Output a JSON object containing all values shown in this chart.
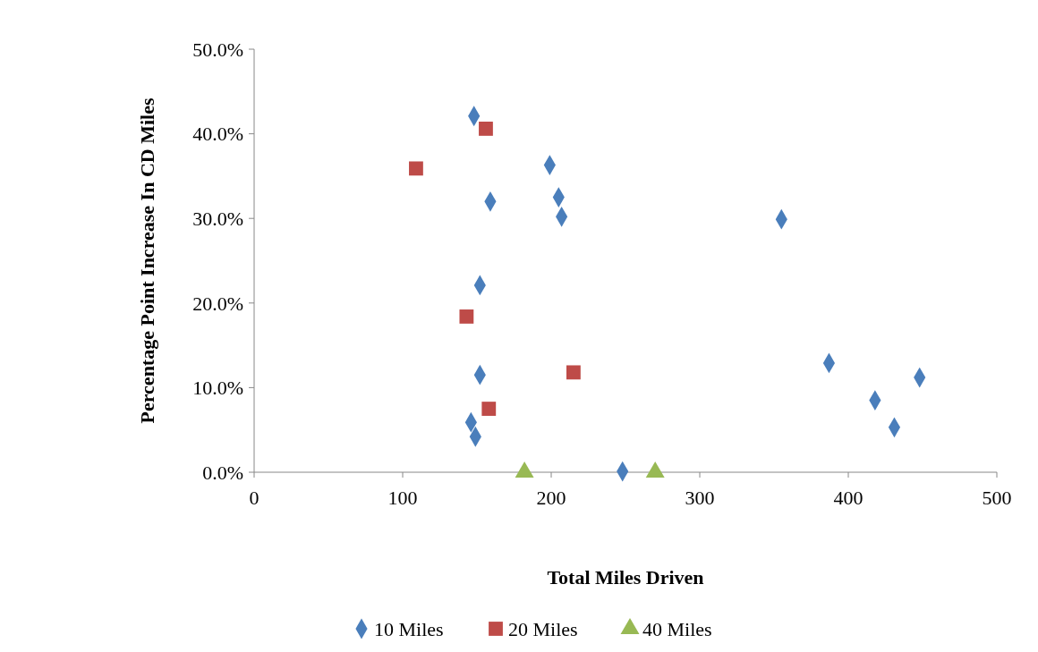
{
  "chart_data": {
    "type": "scatter",
    "xlabel": "Total Miles Driven",
    "ylabel": "Percentage Point Increase In CD Miles",
    "xlim": [
      0,
      500
    ],
    "xticks": [
      0,
      100,
      200,
      300,
      400,
      500
    ],
    "ylim": [
      0,
      50
    ],
    "yticks": [
      {
        "value": 0,
        "label": "0.0%"
      },
      {
        "value": 10,
        "label": "10.0%"
      },
      {
        "value": 20,
        "label": "20.0%"
      },
      {
        "value": 30,
        "label": "30.0%"
      },
      {
        "value": 40,
        "label": "40.0%"
      },
      {
        "value": 50,
        "label": "50.0%"
      }
    ],
    "grid": false,
    "legend": "bottom",
    "series": [
      {
        "name": "10 Miles",
        "color": "#4a7ebb",
        "marker": "diamond",
        "x": [
          148,
          199,
          205,
          159,
          207,
          355,
          152,
          152,
          387,
          448,
          418,
          431,
          146,
          149,
          248
        ],
        "values": [
          42.1,
          36.3,
          32.5,
          32.0,
          30.2,
          29.9,
          22.1,
          11.5,
          12.9,
          11.2,
          8.5,
          5.3,
          5.9,
          4.2,
          0.1
        ]
      },
      {
        "name": "20 Miles",
        "color": "#be4b48",
        "marker": "square",
        "x": [
          156,
          109,
          143,
          215,
          158
        ],
        "values": [
          40.6,
          35.9,
          18.4,
          11.8,
          7.5
        ]
      },
      {
        "name": "40 Miles",
        "color": "#98b954",
        "marker": "triangle",
        "x": [
          182,
          270
        ],
        "values": [
          0,
          0
        ]
      }
    ]
  }
}
